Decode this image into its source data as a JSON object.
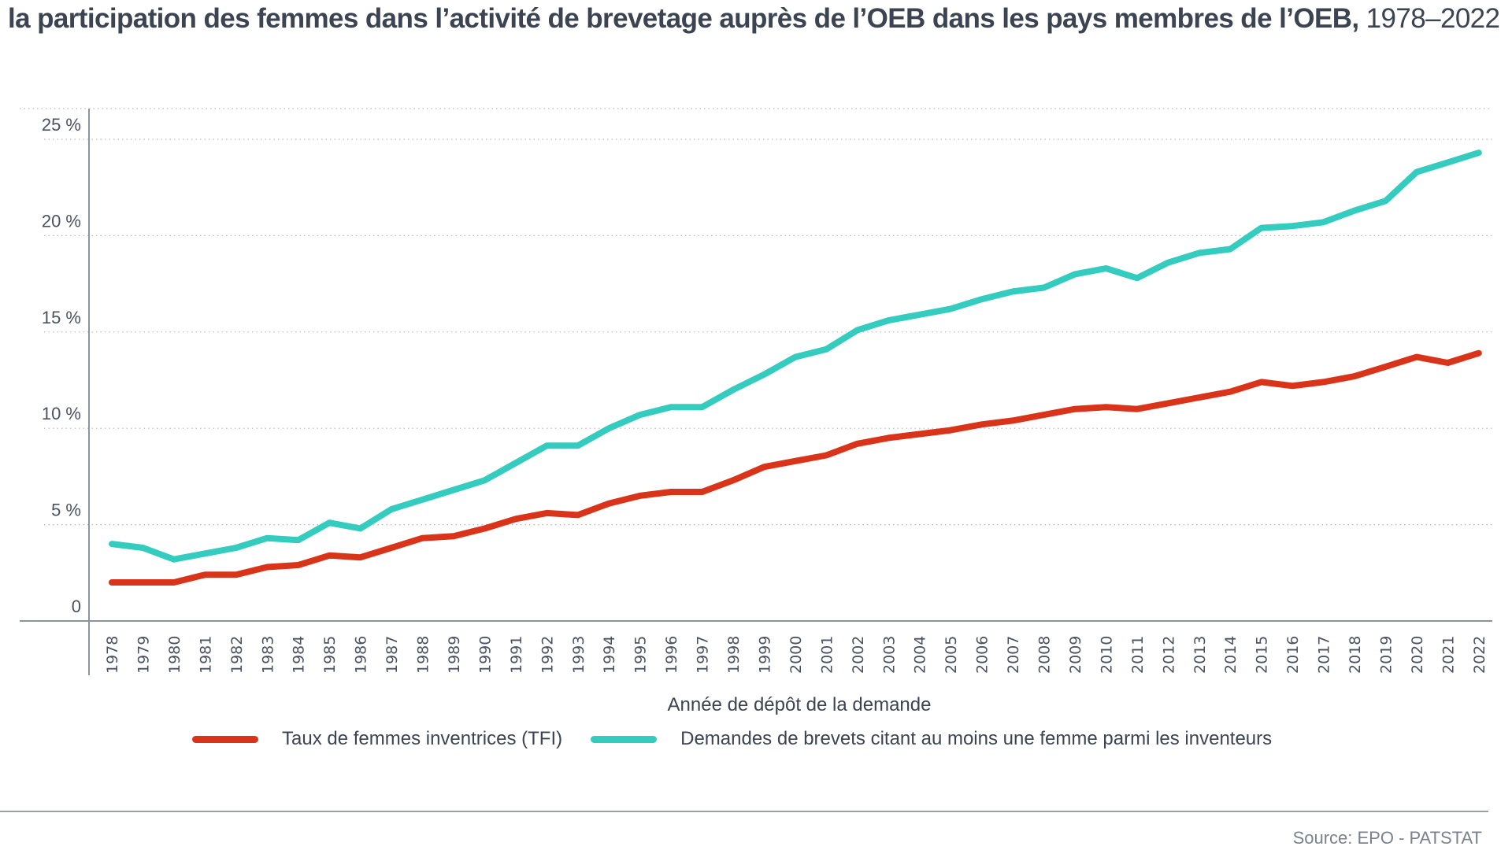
{
  "title": {
    "bold": "la participation des femmes dans l’activité de brevetage auprès de l’OEB dans les pays membres de l’OEB,",
    "light": " 1978–2022"
  },
  "colors": {
    "tfi": "#d9341a",
    "demandes": "#33ccbf",
    "grid": "#b5b8bd",
    "axis": "#8e949b"
  },
  "source": "Source: EPO - PATSTAT",
  "chart_data": {
    "type": "line",
    "title": "la participation des femmes dans l’activité de brevetage auprès de l’OEB dans les pays membres de l’OEB, 1978–2022",
    "xlabel": "Année de dépôt de la demande",
    "ylabel": "",
    "ylim": [
      0,
      25
    ],
    "yticks": [
      0,
      5,
      10,
      15,
      20,
      25
    ],
    "ytick_labels": [
      "0",
      "5 %",
      "10 %",
      "15 %",
      "20 %",
      "25 %"
    ],
    "grid": true,
    "legend_position": "bottom",
    "x": [
      "1978",
      "1979",
      "1980",
      "1981",
      "1982",
      "1983",
      "1984",
      "1985",
      "1986",
      "1987",
      "1988",
      "1989",
      "1990",
      "1991",
      "1992",
      "1993",
      "1994",
      "1995",
      "1996",
      "1997",
      "1998",
      "1999",
      "2000",
      "2001",
      "2002",
      "2003",
      "2004",
      "2005",
      "2006",
      "2007",
      "2008",
      "2009",
      "2010",
      "2011",
      "2012",
      "2013",
      "2014",
      "2015",
      "2016",
      "2017",
      "2018",
      "2019",
      "2020",
      "2021",
      "2022"
    ],
    "series": [
      {
        "name": "Taux de femmes inventrices (TFI)",
        "key": "tfi",
        "values": [
          2.0,
          2.0,
          2.0,
          2.4,
          2.4,
          2.8,
          2.9,
          3.4,
          3.3,
          3.8,
          4.3,
          4.4,
          4.8,
          5.3,
          5.6,
          5.5,
          6.1,
          6.5,
          6.7,
          6.7,
          7.3,
          8.0,
          8.3,
          8.6,
          9.2,
          9.5,
          9.7,
          9.9,
          10.2,
          10.4,
          10.7,
          11.0,
          11.1,
          11.0,
          11.3,
          11.6,
          11.9,
          12.4,
          12.2,
          12.4,
          12.7,
          13.2,
          13.7,
          13.4,
          13.9
        ]
      },
      {
        "name": "Demandes de brevets citant au moins une femme parmi les inventeurs",
        "key": "demandes",
        "values": [
          4.0,
          3.8,
          3.2,
          3.5,
          3.8,
          4.3,
          4.2,
          5.1,
          4.8,
          5.8,
          6.3,
          6.8,
          7.3,
          8.2,
          9.1,
          9.1,
          10.0,
          10.7,
          11.1,
          11.1,
          12.0,
          12.8,
          13.7,
          14.1,
          15.1,
          15.6,
          15.9,
          16.2,
          16.7,
          17.1,
          17.3,
          18.0,
          18.3,
          17.8,
          18.6,
          19.1,
          19.3,
          20.4,
          20.5,
          20.7,
          21.3,
          21.8,
          23.3,
          23.8,
          24.3
        ]
      }
    ]
  }
}
